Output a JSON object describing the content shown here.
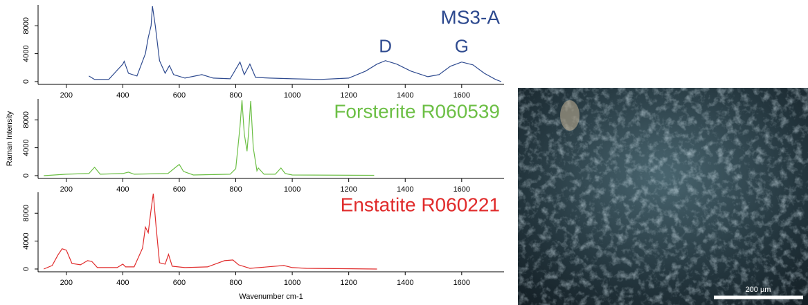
{
  "chart_data": [
    {
      "type": "line",
      "title": "MS3-A",
      "color": "#2e4a8f",
      "x": [
        280,
        300,
        350,
        400,
        405,
        420,
        450,
        480,
        490,
        500,
        505,
        515,
        530,
        550,
        565,
        580,
        620,
        680,
        720,
        780,
        815,
        830,
        850,
        870,
        920,
        1000,
        1100,
        1200,
        1260,
        1300,
        1330,
        1370,
        1420,
        1480,
        1520,
        1560,
        1600,
        1640,
        1680,
        1720,
        1740
      ],
      "values": [
        800,
        300,
        300,
        2500,
        2900,
        1200,
        800,
        4000,
        6300,
        8000,
        10800,
        8000,
        3000,
        1200,
        2300,
        1000,
        500,
        1000,
        500,
        400,
        2800,
        1000,
        2500,
        600,
        500,
        400,
        300,
        500,
        1500,
        2500,
        3000,
        2500,
        1500,
        700,
        1000,
        2200,
        2800,
        2400,
        1200,
        300,
        0
      ],
      "xlim": [
        100,
        1750
      ],
      "ylim": [
        -400,
        11000
      ],
      "xticks": [
        200,
        400,
        600,
        800,
        1000,
        1200,
        1400,
        1600
      ],
      "yticks": [
        0,
        4000,
        8000
      ],
      "annotations": [
        {
          "text": "D",
          "x": 1330,
          "y": 4900
        },
        {
          "text": "G",
          "x": 1600,
          "y": 4900
        }
      ]
    },
    {
      "type": "line",
      "title": "Forsterite R060539",
      "color": "#6cbf45",
      "ylabel": "Raman Intensity",
      "x": [
        120,
        200,
        280,
        300,
        320,
        400,
        420,
        440,
        560,
        590,
        600,
        615,
        650,
        780,
        800,
        815,
        822,
        830,
        840,
        845,
        853,
        862,
        875,
        880,
        900,
        940,
        960,
        975,
        1000,
        1290
      ],
      "values": [
        0,
        200,
        300,
        1200,
        200,
        300,
        500,
        200,
        300,
        1300,
        1600,
        600,
        100,
        200,
        1000,
        7000,
        10800,
        6000,
        3500,
        6000,
        10700,
        4000,
        700,
        1100,
        200,
        200,
        1100,
        300,
        100,
        50
      ],
      "xlim": [
        100,
        1750
      ],
      "ylim": [
        -400,
        11000
      ],
      "xticks": [
        200,
        400,
        600,
        800,
        1000,
        1200,
        1400,
        1600
      ],
      "yticks": [
        0,
        4000,
        8000
      ]
    },
    {
      "type": "line",
      "title": "Enstatite R060221",
      "color": "#e02b2b",
      "xlabel": "Wavenumber cm-1",
      "x": [
        120,
        150,
        170,
        185,
        200,
        220,
        250,
        275,
        290,
        310,
        380,
        400,
        410,
        440,
        470,
        480,
        490,
        500,
        508,
        518,
        530,
        550,
        562,
        575,
        620,
        700,
        760,
        790,
        810,
        850,
        970,
        1000,
        1050,
        1300
      ],
      "values": [
        0,
        500,
        2000,
        2900,
        2700,
        800,
        600,
        1200,
        1100,
        200,
        200,
        700,
        300,
        300,
        3000,
        6000,
        5200,
        8500,
        10800,
        6000,
        900,
        700,
        2100,
        400,
        200,
        300,
        1200,
        1300,
        600,
        100,
        500,
        200,
        100,
        0
      ],
      "xlim": [
        100,
        1750
      ],
      "ylim": [
        -400,
        11000
      ],
      "xticks": [
        200,
        400,
        600,
        800,
        1000,
        1200,
        1400,
        1600
      ],
      "yticks": [
        0,
        4000,
        8000
      ]
    }
  ],
  "image": {
    "scale_bar": "200 µm"
  }
}
